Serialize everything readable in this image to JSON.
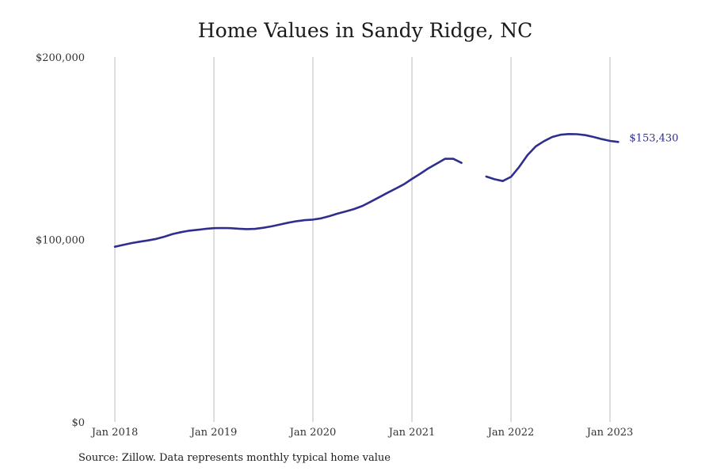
{
  "chart_data": {
    "type": "line",
    "title": "Home Values in Sandy Ridge, NC",
    "xlabel": "",
    "ylabel": "",
    "x_ticks": [
      "Jan 2018",
      "Jan 2019",
      "Jan 2020",
      "Jan 2021",
      "Jan 2022",
      "Jan 2023"
    ],
    "y_ticks": [
      "$0",
      "$100,000",
      "$200,000"
    ],
    "ylim": [
      0,
      200000
    ],
    "x_range": [
      "2018-01",
      "2023-02"
    ],
    "grid": "vertical",
    "line_color": "#2e2e8f",
    "end_label": "$153,430",
    "series": [
      {
        "name": "",
        "x": [
          "2018-01",
          "2018-02",
          "2018-03",
          "2018-04",
          "2018-05",
          "2018-06",
          "2018-07",
          "2018-08",
          "2018-09",
          "2018-10",
          "2018-11",
          "2018-12",
          "2019-01",
          "2019-02",
          "2019-03",
          "2019-04",
          "2019-05",
          "2019-06",
          "2019-07",
          "2019-08",
          "2019-09",
          "2019-10",
          "2019-11",
          "2019-12",
          "2020-01",
          "2020-02",
          "2020-03",
          "2020-04",
          "2020-05",
          "2020-06",
          "2020-07",
          "2020-08",
          "2020-09",
          "2020-10",
          "2020-11",
          "2020-12",
          "2021-01",
          "2021-02",
          "2021-03",
          "2021-04",
          "2021-05",
          "2021-06",
          "2021-07",
          "2021-08",
          "2021-09",
          "2021-10",
          "2021-11",
          "2021-12",
          "2022-01",
          "2022-02",
          "2022-03",
          "2022-04",
          "2022-05",
          "2022-06",
          "2022-07",
          "2022-08",
          "2022-09",
          "2022-10",
          "2022-11",
          "2022-12",
          "2023-01",
          "2023-02"
        ],
        "y": [
          96000,
          97000,
          98000,
          98800,
          99500,
          100300,
          101500,
          103000,
          104000,
          104800,
          105300,
          105800,
          106200,
          106300,
          106200,
          105900,
          105700,
          105800,
          106400,
          107200,
          108200,
          109200,
          110000,
          110600,
          110900,
          111600,
          112800,
          114200,
          115400,
          116700,
          118400,
          120700,
          123100,
          125500,
          127800,
          130200,
          133200,
          136000,
          139000,
          141600,
          144200,
          144200,
          142000,
          null,
          null,
          134500,
          133000,
          132000,
          134300,
          139800,
          146200,
          151000,
          153900,
          156200,
          157400,
          157800,
          157700,
          157200,
          156200,
          155000,
          154000,
          153430
        ]
      }
    ]
  },
  "source_text": "Source: Zillow. Data represents monthly typical home value"
}
